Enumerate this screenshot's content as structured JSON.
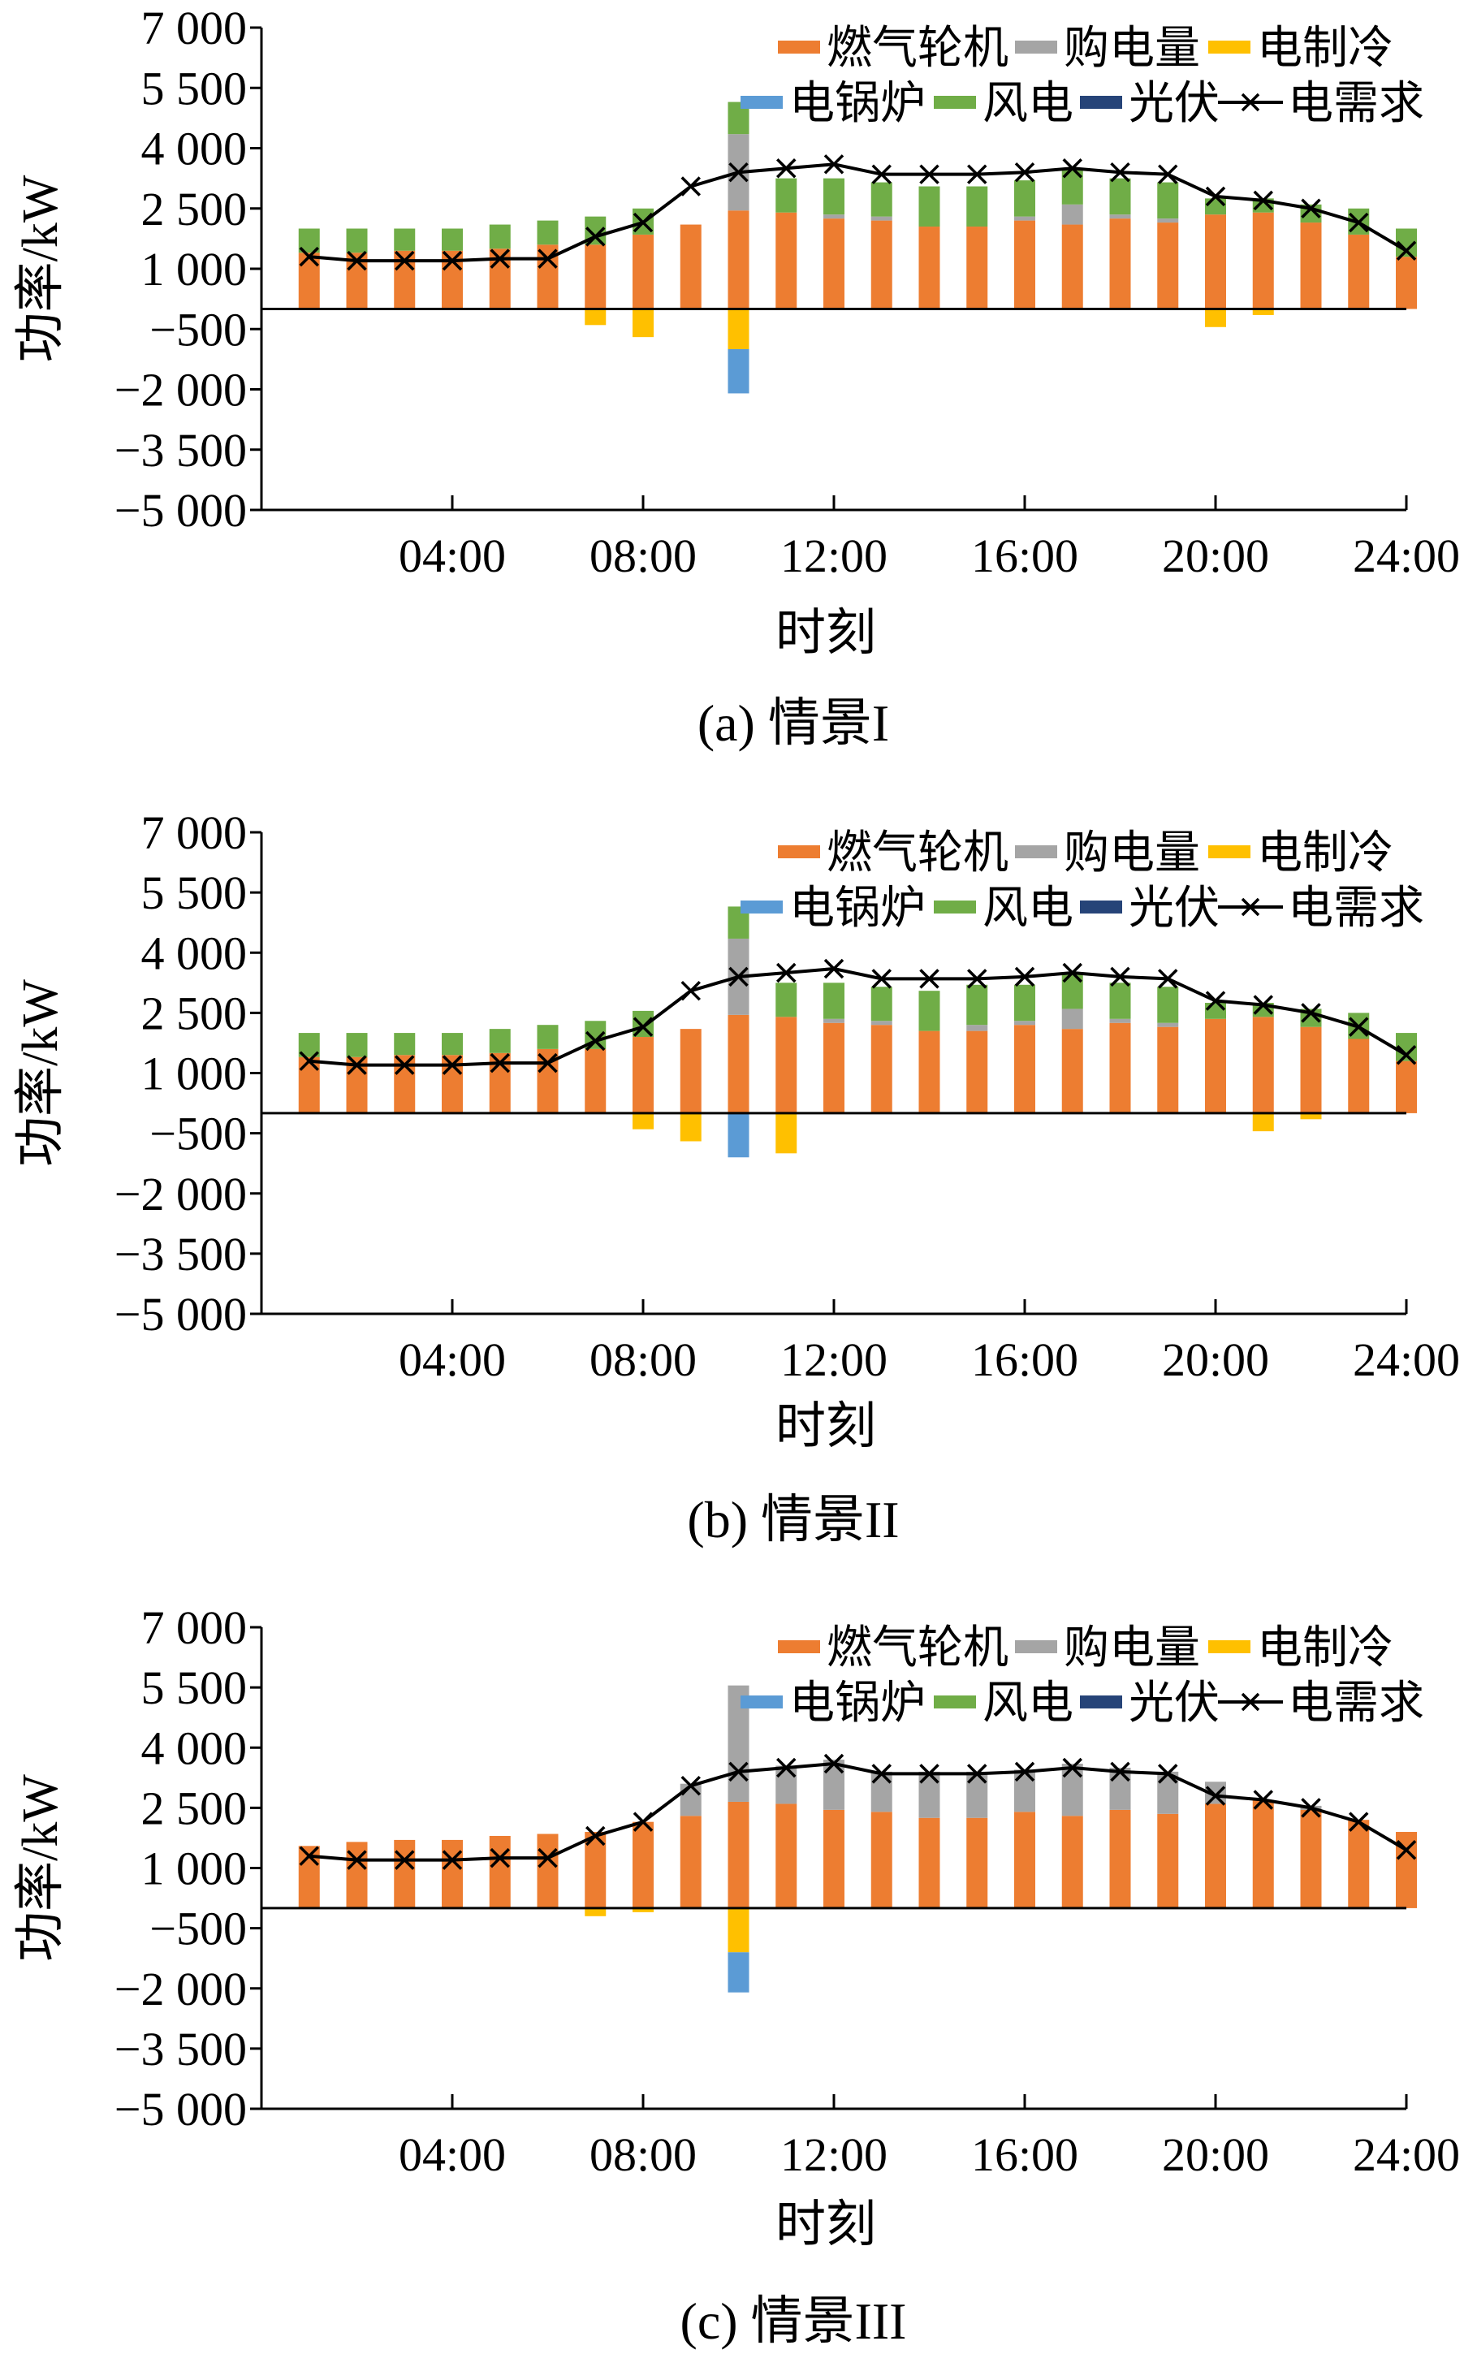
{
  "series_colors": {
    "gas_turbine": "#ED7D31",
    "grid_purchase": "#A5A5A5",
    "electric_chiller": "#FFC000",
    "electric_boiler": "#5B9BD5",
    "wind": "#70AD47",
    "pv": "#264478",
    "demand": "#000000"
  },
  "legend_labels": {
    "gas_turbine": "燃气轮机",
    "grid_purchase": "购电量",
    "electric_chiller": "电制冷",
    "electric_boiler": "电锅炉",
    "wind": "风电",
    "pv": "光伏",
    "demand": "电需求"
  },
  "chart_data": [
    {
      "type": "bar",
      "caption": "(a) 情景I",
      "xlabel": "时刻",
      "ylabel": "功率/kW",
      "ylim": [
        -5000,
        7000
      ],
      "yticks": [
        7000,
        5500,
        4000,
        2500,
        1000,
        -500,
        -2000,
        -3500,
        -5000
      ],
      "ytick_labels": [
        "7 000",
        "5 500",
        "4 000",
        "2 500",
        "1 000",
        "−500",
        "−2 000",
        "−3 500",
        "−5 000"
      ],
      "xticks": [
        4,
        8,
        12,
        16,
        20,
        24
      ],
      "xtick_labels": [
        "04:00",
        "08:00",
        "12:00",
        "16:00",
        "20:00",
        "24:00"
      ],
      "hours": [
        1,
        2,
        3,
        4,
        5,
        6,
        7,
        8,
        9,
        10,
        11,
        12,
        13,
        14,
        15,
        16,
        17,
        18,
        19,
        20,
        21,
        22,
        23,
        24
      ],
      "series": [
        {
          "key": "gas_turbine",
          "values": [
            1400,
            1400,
            1450,
            1450,
            1500,
            1600,
            1600,
            1850,
            2100,
            2450,
            2400,
            2250,
            2200,
            2050,
            2050,
            2200,
            2100,
            2250,
            2150,
            2350,
            2400,
            2150,
            1850,
            1300
          ]
        },
        {
          "key": "grid_purchase",
          "values": [
            0,
            0,
            0,
            0,
            0,
            0,
            0,
            0,
            0,
            1900,
            0,
            100,
            100,
            0,
            0,
            100,
            500,
            100,
            100,
            0,
            0,
            0,
            0,
            0
          ]
        },
        {
          "key": "wind",
          "values": [
            600,
            600,
            550,
            550,
            600,
            600,
            700,
            650,
            0,
            800,
            850,
            900,
            850,
            1000,
            1000,
            900,
            900,
            900,
            900,
            400,
            350,
            450,
            650,
            700
          ]
        },
        {
          "key": "pv",
          "values": [
            0,
            0,
            0,
            0,
            0,
            0,
            0,
            0,
            0,
            0,
            0,
            0,
            0,
            0,
            0,
            0,
            0,
            0,
            0,
            0,
            0,
            0,
            0,
            0
          ]
        },
        {
          "key": "electric_chiller",
          "values": [
            0,
            0,
            0,
            0,
            0,
            0,
            -400,
            -700,
            0,
            -1000,
            0,
            0,
            0,
            0,
            0,
            0,
            0,
            0,
            0,
            -450,
            -150,
            0,
            0,
            0
          ]
        },
        {
          "key": "electric_boiler",
          "values": [
            0,
            0,
            0,
            0,
            0,
            0,
            0,
            0,
            0,
            -1100,
            0,
            0,
            0,
            0,
            0,
            0,
            0,
            0,
            0,
            0,
            0,
            0,
            0,
            0
          ]
        }
      ],
      "demand": [
        1300,
        1200,
        1200,
        1200,
        1250,
        1250,
        1800,
        2150,
        3050,
        3400,
        3500,
        3600,
        3350,
        3350,
        3350,
        3400,
        3500,
        3400,
        3350,
        2800,
        2700,
        2500,
        2150,
        1450
      ]
    },
    {
      "type": "bar",
      "caption": "(b) 情景II",
      "xlabel": "时刻",
      "ylabel": "功率/kW",
      "ylim": [
        -5000,
        7000
      ],
      "yticks": [
        7000,
        5500,
        4000,
        2500,
        1000,
        -500,
        -2000,
        -3500,
        -5000
      ],
      "ytick_labels": [
        "7 000",
        "5 500",
        "4 000",
        "2 500",
        "1 000",
        "−500",
        "−2 000",
        "−3 500",
        "−5 000"
      ],
      "xticks": [
        4,
        8,
        12,
        16,
        20,
        24
      ],
      "xtick_labels": [
        "04:00",
        "08:00",
        "12:00",
        "16:00",
        "20:00",
        "24:00"
      ],
      "hours": [
        1,
        2,
        3,
        4,
        5,
        6,
        7,
        8,
        9,
        10,
        11,
        12,
        13,
        14,
        15,
        16,
        17,
        18,
        19,
        20,
        21,
        22,
        23,
        24
      ],
      "series": [
        {
          "key": "gas_turbine",
          "values": [
            1400,
            1400,
            1450,
            1450,
            1500,
            1600,
            1600,
            1900,
            2100,
            2450,
            2400,
            2250,
            2200,
            2050,
            2050,
            2200,
            2100,
            2250,
            2150,
            2350,
            2400,
            2150,
            1850,
            1300
          ]
        },
        {
          "key": "grid_purchase",
          "values": [
            0,
            0,
            0,
            0,
            0,
            0,
            0,
            0,
            0,
            1900,
            0,
            100,
            100,
            0,
            150,
            100,
            500,
            100,
            100,
            0,
            0,
            0,
            0,
            0
          ]
        },
        {
          "key": "wind",
          "values": [
            600,
            600,
            550,
            550,
            600,
            600,
            700,
            650,
            0,
            800,
            850,
            900,
            850,
            1000,
            1000,
            900,
            900,
            900,
            900,
            400,
            350,
            450,
            650,
            700
          ]
        },
        {
          "key": "pv",
          "values": [
            0,
            0,
            0,
            0,
            0,
            0,
            0,
            0,
            0,
            0,
            0,
            0,
            0,
            0,
            0,
            0,
            0,
            0,
            0,
            0,
            0,
            0,
            0,
            0
          ]
        },
        {
          "key": "electric_chiller",
          "values": [
            0,
            0,
            0,
            0,
            0,
            0,
            0,
            -400,
            -700,
            0,
            -1000,
            0,
            0,
            0,
            0,
            0,
            0,
            0,
            0,
            0,
            -450,
            -150,
            0,
            0
          ]
        },
        {
          "key": "electric_boiler",
          "values": [
            0,
            0,
            0,
            0,
            0,
            0,
            0,
            0,
            0,
            -1100,
            0,
            0,
            0,
            0,
            0,
            0,
            0,
            0,
            0,
            0,
            0,
            0,
            0,
            0
          ]
        }
      ],
      "demand": [
        1300,
        1200,
        1200,
        1200,
        1250,
        1250,
        1800,
        2150,
        3050,
        3400,
        3500,
        3600,
        3350,
        3350,
        3350,
        3400,
        3500,
        3400,
        3350,
        2800,
        2700,
        2500,
        2150,
        1450
      ]
    },
    {
      "type": "bar",
      "caption": "(c) 情景III",
      "xlabel": "时刻",
      "ylabel": "功率/kW",
      "ylim": [
        -5000,
        7000
      ],
      "yticks": [
        7000,
        5500,
        4000,
        2500,
        1000,
        -500,
        -2000,
        -3500,
        -5000
      ],
      "ytick_labels": [
        "7 000",
        "5 500",
        "4 000",
        "2 500",
        "1 000",
        "−500",
        "−2 000",
        "−3 500",
        "−5 000"
      ],
      "xticks": [
        4,
        8,
        12,
        16,
        20,
        24
      ],
      "xtick_labels": [
        "04:00",
        "08:00",
        "12:00",
        "16:00",
        "20:00",
        "24:00"
      ],
      "hours": [
        1,
        2,
        3,
        4,
        5,
        6,
        7,
        8,
        9,
        10,
        11,
        12,
        13,
        14,
        15,
        16,
        17,
        18,
        19,
        20,
        21,
        22,
        23,
        24
      ],
      "series": [
        {
          "key": "gas_turbine",
          "values": [
            1550,
            1650,
            1700,
            1700,
            1800,
            1850,
            1900,
            2150,
            2300,
            2650,
            2600,
            2450,
            2400,
            2250,
            2250,
            2400,
            2300,
            2450,
            2350,
            2600,
            2700,
            2450,
            2200,
            1900
          ]
        },
        {
          "key": "grid_purchase",
          "values": [
            0,
            0,
            0,
            0,
            0,
            0,
            0,
            0,
            800,
            2900,
            950,
            1250,
            1000,
            1150,
            1150,
            1050,
            1300,
            1050,
            1050,
            550,
            0,
            100,
            0,
            0
          ]
        },
        {
          "key": "wind",
          "values": [
            0,
            0,
            0,
            0,
            0,
            0,
            0,
            0,
            0,
            0,
            0,
            0,
            0,
            0,
            0,
            0,
            0,
            0,
            0,
            0,
            0,
            0,
            0,
            0
          ]
        },
        {
          "key": "pv",
          "values": [
            0,
            0,
            0,
            0,
            0,
            0,
            0,
            0,
            0,
            0,
            0,
            0,
            0,
            0,
            0,
            0,
            0,
            0,
            0,
            0,
            0,
            0,
            0,
            0
          ]
        },
        {
          "key": "electric_chiller",
          "values": [
            0,
            0,
            0,
            0,
            0,
            0,
            -200,
            -100,
            0,
            -1100,
            0,
            0,
            0,
            0,
            0,
            0,
            0,
            0,
            0,
            0,
            0,
            0,
            0,
            0
          ]
        },
        {
          "key": "electric_boiler",
          "values": [
            0,
            0,
            0,
            0,
            0,
            0,
            0,
            0,
            0,
            -1000,
            0,
            0,
            0,
            0,
            0,
            0,
            0,
            0,
            0,
            0,
            0,
            0,
            0,
            0
          ]
        }
      ],
      "demand": [
        1300,
        1200,
        1200,
        1200,
        1250,
        1250,
        1800,
        2150,
        3050,
        3400,
        3500,
        3600,
        3350,
        3350,
        3350,
        3400,
        3500,
        3400,
        3350,
        2800,
        2700,
        2500,
        2150,
        1450
      ]
    }
  ]
}
